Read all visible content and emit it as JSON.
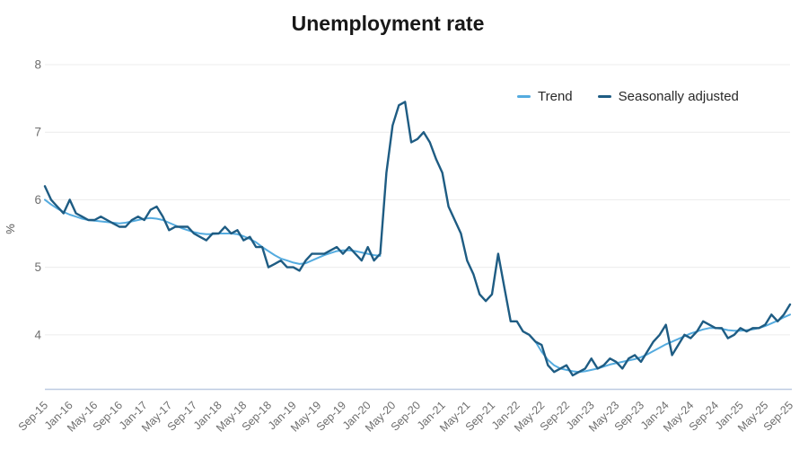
{
  "chart_data": {
    "type": "line",
    "title": "Unemployment rate",
    "ylabel": "%",
    "x_start": "Sep-15",
    "x_end": "Sep-25",
    "x_frequency": "monthly",
    "x_tick_labels": [
      "Sep-15",
      "Jan-16",
      "May-16",
      "Sep-16",
      "Jan-17",
      "May-17",
      "Sep-17",
      "Jan-18",
      "May-18",
      "Sep-18",
      "Jan-19",
      "May-19",
      "Sep-19",
      "Jan-20",
      "May-20",
      "Sep-20",
      "Jan-21",
      "May-21",
      "Sep-21",
      "Jan-22",
      "May-22",
      "Sep-22",
      "Jan-23",
      "May-23",
      "Sep-23",
      "Jan-24",
      "May-24",
      "Sep-24",
      "Jan-25",
      "May-25",
      "Sep-25"
    ],
    "x_tick_step_months": 4,
    "y_ticks": [
      8,
      7,
      6,
      5,
      4
    ],
    "ylim": [
      3.2,
      8.2
    ],
    "grid": "horizontal",
    "legend_position": "top-right-inside",
    "colors": {
      "trend": "#54abdf",
      "seasonally_adjusted": "#1e5c83",
      "gridline": "#ececec",
      "axis_line": "#bdcbe1",
      "tick_text": "#6e6e6e"
    },
    "series": [
      {
        "name": "Trend",
        "color": "#54abdf",
        "note": "suspended Apr-2020 to Mar-2022",
        "values": [
          6.0,
          5.93,
          5.87,
          5.82,
          5.78,
          5.75,
          5.72,
          5.7,
          5.69,
          5.68,
          5.67,
          5.66,
          5.65,
          5.66,
          5.68,
          5.7,
          5.72,
          5.73,
          5.72,
          5.7,
          5.66,
          5.62,
          5.58,
          5.55,
          5.52,
          5.5,
          5.49,
          5.49,
          5.5,
          5.5,
          5.5,
          5.49,
          5.46,
          5.42,
          5.37,
          5.3,
          5.24,
          5.18,
          5.13,
          5.1,
          5.07,
          5.05,
          5.06,
          5.1,
          5.14,
          5.18,
          5.21,
          5.24,
          5.25,
          5.25,
          5.24,
          5.22,
          5.2,
          5.18,
          5.17,
          null,
          null,
          null,
          null,
          null,
          null,
          null,
          null,
          null,
          null,
          null,
          null,
          null,
          null,
          null,
          null,
          null,
          null,
          null,
          null,
          null,
          null,
          null,
          null,
          3.9,
          3.75,
          3.63,
          3.55,
          3.5,
          3.48,
          3.46,
          3.45,
          3.46,
          3.48,
          3.5,
          3.53,
          3.56,
          3.58,
          3.6,
          3.62,
          3.64,
          3.67,
          3.71,
          3.76,
          3.81,
          3.86,
          3.9,
          3.94,
          3.98,
          4.02,
          4.05,
          4.08,
          4.1,
          4.1,
          4.09,
          4.07,
          4.06,
          4.06,
          4.07,
          4.08,
          4.1,
          4.13,
          4.17,
          4.21,
          4.26,
          4.3
        ]
      },
      {
        "name": "Seasonally adjusted",
        "color": "#1e5c83",
        "values": [
          6.2,
          6.0,
          5.9,
          5.8,
          6.0,
          5.8,
          5.75,
          5.7,
          5.7,
          5.75,
          5.7,
          5.65,
          5.6,
          5.6,
          5.7,
          5.75,
          5.7,
          5.85,
          5.9,
          5.75,
          5.55,
          5.6,
          5.6,
          5.6,
          5.5,
          5.45,
          5.4,
          5.5,
          5.5,
          5.6,
          5.5,
          5.55,
          5.4,
          5.45,
          5.3,
          5.3,
          5.0,
          5.05,
          5.1,
          5.0,
          5.0,
          4.95,
          5.1,
          5.2,
          5.2,
          5.2,
          5.25,
          5.3,
          5.2,
          5.3,
          5.2,
          5.1,
          5.3,
          5.1,
          5.2,
          6.4,
          7.1,
          7.4,
          7.45,
          6.85,
          6.9,
          7.0,
          6.85,
          6.6,
          6.4,
          5.9,
          5.7,
          5.5,
          5.1,
          4.9,
          4.6,
          4.5,
          4.6,
          5.2,
          4.7,
          4.2,
          4.2,
          4.05,
          4.0,
          3.9,
          3.85,
          3.55,
          3.45,
          3.5,
          3.55,
          3.4,
          3.45,
          3.5,
          3.65,
          3.5,
          3.55,
          3.65,
          3.6,
          3.5,
          3.65,
          3.7,
          3.6,
          3.75,
          3.9,
          4.0,
          4.15,
          3.7,
          3.85,
          4.0,
          3.95,
          4.05,
          4.2,
          4.15,
          4.1,
          4.1,
          3.95,
          4.0,
          4.1,
          4.05,
          4.1,
          4.1,
          4.15,
          4.3,
          4.2,
          4.3,
          4.45
        ]
      }
    ]
  }
}
